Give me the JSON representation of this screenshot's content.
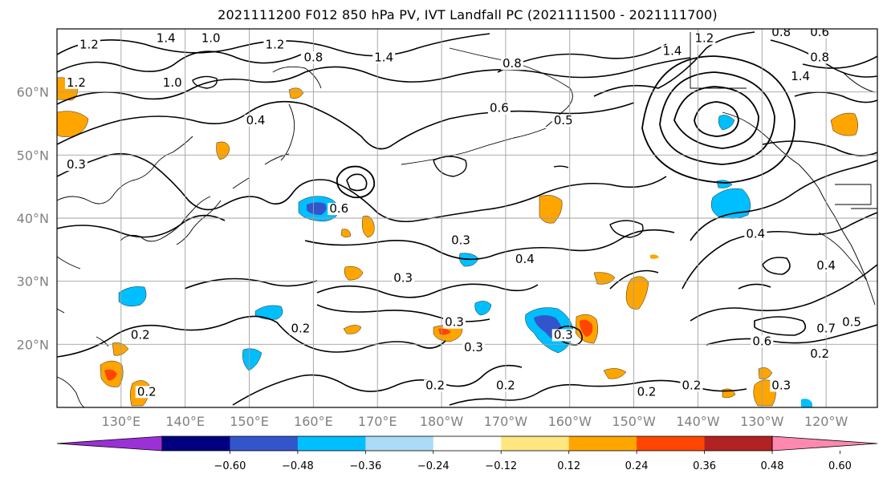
{
  "title": "2021111200 F012 850 hPa PV, IVT Landfall PC (2021111500 - 2021111700)",
  "map": {
    "lon_range": [
      120,
      -112
    ],
    "lat_range": [
      10,
      70
    ],
    "lat_ticks": [
      {
        "lat": 60,
        "label": "60°N"
      },
      {
        "lat": 50,
        "label": "50°N"
      },
      {
        "lat": 40,
        "label": "40°N"
      },
      {
        "lat": 30,
        "label": "30°N"
      },
      {
        "lat": 20,
        "label": "20°N"
      }
    ],
    "lon_ticks": [
      {
        "lon": 130,
        "label": "130°E"
      },
      {
        "lon": 140,
        "label": "140°E"
      },
      {
        "lon": 150,
        "label": "150°E"
      },
      {
        "lon": 160,
        "label": "160°E"
      },
      {
        "lon": 170,
        "label": "170°E"
      },
      {
        "lon": 180,
        "label": "180°W"
      },
      {
        "lon": 190,
        "label": "170°W"
      },
      {
        "lon": 200,
        "label": "160°W"
      },
      {
        "lon": 210,
        "label": "150°W"
      },
      {
        "lon": 220,
        "label": "140°W"
      },
      {
        "lon": 230,
        "label": "130°W"
      },
      {
        "lon": 240,
        "label": "120°W"
      }
    ],
    "contour_labels": [
      {
        "text": "1.2",
        "lon": 125,
        "lat": 67
      },
      {
        "text": "1.4",
        "lon": 137,
        "lat": 68
      },
      {
        "text": "1.0",
        "lon": 144,
        "lat": 68
      },
      {
        "text": "1.2",
        "lon": 154,
        "lat": 67
      },
      {
        "text": "0.8",
        "lon": 160,
        "lat": 65
      },
      {
        "text": "1.4",
        "lon": 171,
        "lat": 65
      },
      {
        "text": "1.2",
        "lon": 123,
        "lat": 61
      },
      {
        "text": "1.0",
        "lon": 138,
        "lat": 61
      },
      {
        "text": "0.4",
        "lon": 151,
        "lat": 55
      },
      {
        "text": "0.8",
        "lon": 191,
        "lat": 64
      },
      {
        "text": "0.6",
        "lon": 189,
        "lat": 57
      },
      {
        "text": "0.5",
        "lon": 199,
        "lat": 55
      },
      {
        "text": "1.4",
        "lon": 216,
        "lat": 66
      },
      {
        "text": "1.2",
        "lon": 221,
        "lat": 68
      },
      {
        "text": "0.8",
        "lon": 233,
        "lat": 69
      },
      {
        "text": "0.6",
        "lon": 239,
        "lat": 69
      },
      {
        "text": "0.8",
        "lon": 239,
        "lat": 65
      },
      {
        "text": "1.4",
        "lon": 236,
        "lat": 62
      },
      {
        "text": "0.3",
        "lon": 123,
        "lat": 48
      },
      {
        "text": "0.6",
        "lon": 164,
        "lat": 41
      },
      {
        "text": "0.3",
        "lon": 183,
        "lat": 36
      },
      {
        "text": "0.4",
        "lon": 193,
        "lat": 33
      },
      {
        "text": "0.3",
        "lon": 174,
        "lat": 30
      },
      {
        "text": "0.4",
        "lon": 229,
        "lat": 37
      },
      {
        "text": "0.4",
        "lon": 240,
        "lat": 32
      },
      {
        "text": "0.2",
        "lon": 133,
        "lat": 21
      },
      {
        "text": "0.2",
        "lon": 158,
        "lat": 22
      },
      {
        "text": "0.3",
        "lon": 182,
        "lat": 23
      },
      {
        "text": "0.3",
        "lon": 185,
        "lat": 19
      },
      {
        "text": "0.3",
        "lon": 199,
        "lat": 21
      },
      {
        "text": "0.2",
        "lon": 190,
        "lat": 13
      },
      {
        "text": "0.2",
        "lon": 179,
        "lat": 13
      },
      {
        "text": "0.2",
        "lon": 134,
        "lat": 12
      },
      {
        "text": "0.2",
        "lon": 212,
        "lat": 12
      },
      {
        "text": "0.2",
        "lon": 219,
        "lat": 13
      },
      {
        "text": "0.6",
        "lon": 230,
        "lat": 20
      },
      {
        "text": "0.7",
        "lon": 240,
        "lat": 22
      },
      {
        "text": "0.5",
        "lon": 244,
        "lat": 23
      },
      {
        "text": "0.2",
        "lon": 239,
        "lat": 18
      },
      {
        "text": "0.3",
        "lon": 233,
        "lat": 13
      }
    ]
  },
  "colorbar": {
    "colors": [
      "#9b30d6",
      "#000080",
      "#3355cc",
      "#00bfff",
      "#aadcf8",
      "#ffffff",
      "#ffe680",
      "#ffa500",
      "#ff4500",
      "#b22222",
      "#ff88b0"
    ],
    "tick_labels": [
      "−0.60",
      "−0.48",
      "−0.36",
      "−0.24",
      "−0.12",
      "0.12",
      "0.24",
      "0.36",
      "0.48",
      "0.60"
    ]
  },
  "colors": {
    "grid": "#a0a0a0",
    "land_line": "#000000",
    "axis_label": "#808080"
  }
}
